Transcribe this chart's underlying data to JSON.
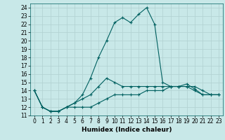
{
  "xlabel": "Humidex (Indice chaleur)",
  "bg_color": "#c8e8e8",
  "grid_color": "#b0d0d0",
  "line_color": "#006060",
  "xlim": [
    -0.5,
    23.5
  ],
  "ylim": [
    11,
    24.5
  ],
  "yticks": [
    11,
    12,
    13,
    14,
    15,
    16,
    17,
    18,
    19,
    20,
    21,
    22,
    23,
    24
  ],
  "xticks": [
    0,
    1,
    2,
    3,
    4,
    5,
    6,
    7,
    8,
    9,
    10,
    11,
    12,
    13,
    14,
    15,
    16,
    17,
    18,
    19,
    20,
    21,
    22,
    23
  ],
  "line1_x": [
    0,
    1,
    2,
    3,
    4,
    5,
    6,
    7,
    8,
    9,
    10,
    11,
    12,
    13,
    14,
    15,
    16,
    17,
    18,
    19,
    20,
    21,
    22,
    23
  ],
  "line1_y": [
    14,
    12,
    11.5,
    11.5,
    12,
    12,
    12,
    12,
    12.5,
    13,
    13.5,
    13.5,
    13.5,
    13.5,
    14,
    14,
    14,
    14.5,
    14.5,
    14.5,
    14,
    13.5,
    13.5,
    13.5
  ],
  "line2_x": [
    0,
    1,
    2,
    3,
    4,
    5,
    6,
    7,
    8,
    9,
    10,
    11,
    12,
    13,
    14,
    15,
    16,
    17,
    18,
    19,
    20,
    21,
    22,
    23
  ],
  "line2_y": [
    14,
    12,
    11.5,
    11.5,
    12,
    12.5,
    13,
    13.5,
    14.5,
    15.5,
    15,
    14.5,
    14.5,
    14.5,
    14.5,
    14.5,
    14.5,
    14.5,
    14.5,
    14.5,
    14.5,
    14,
    13.5,
    13.5
  ],
  "line3_x": [
    0,
    1,
    2,
    3,
    4,
    5,
    6,
    7,
    8,
    9,
    10,
    11,
    12,
    13,
    14,
    15,
    16,
    17,
    18,
    19,
    20,
    21,
    22,
    23
  ],
  "line3_y": [
    14,
    12,
    11.5,
    11.5,
    12,
    12.5,
    13.5,
    15.5,
    18.0,
    20,
    22.2,
    22.8,
    22.2,
    23.2,
    24.0,
    22.0,
    15.0,
    14.5,
    14.5,
    14.8,
    14.2,
    13.5,
    13.5,
    13.5
  ],
  "tick_fontsize": 5.5,
  "xlabel_fontsize": 6.5
}
